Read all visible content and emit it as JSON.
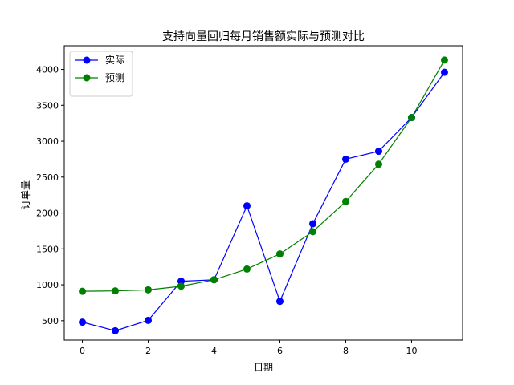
{
  "chart_data": {
    "type": "line",
    "title": "支持向量回归每月销售额实际与预测对比",
    "xlabel": "日期",
    "ylabel": "订单量",
    "xlim": [
      -0.55,
      11.55
    ],
    "ylim": [
      230,
      4330
    ],
    "xticks": [
      0,
      2,
      4,
      6,
      8,
      10
    ],
    "yticks": [
      500,
      1000,
      1500,
      2000,
      2500,
      3000,
      3500,
      4000
    ],
    "grid": false,
    "legend_position": "top-left",
    "x": [
      0,
      1,
      2,
      3,
      4,
      5,
      6,
      7,
      8,
      9,
      10,
      11
    ],
    "series": [
      {
        "name": "实际",
        "color": "#0000ff",
        "values": [
          480,
          360,
          505,
          1050,
          1070,
          2100,
          770,
          1850,
          2750,
          2860,
          3330,
          3960
        ]
      },
      {
        "name": "预测",
        "color": "#008000",
        "values": [
          910,
          915,
          930,
          980,
          1070,
          1220,
          1430,
          1740,
          2160,
          2680,
          3330,
          4130
        ]
      }
    ]
  }
}
